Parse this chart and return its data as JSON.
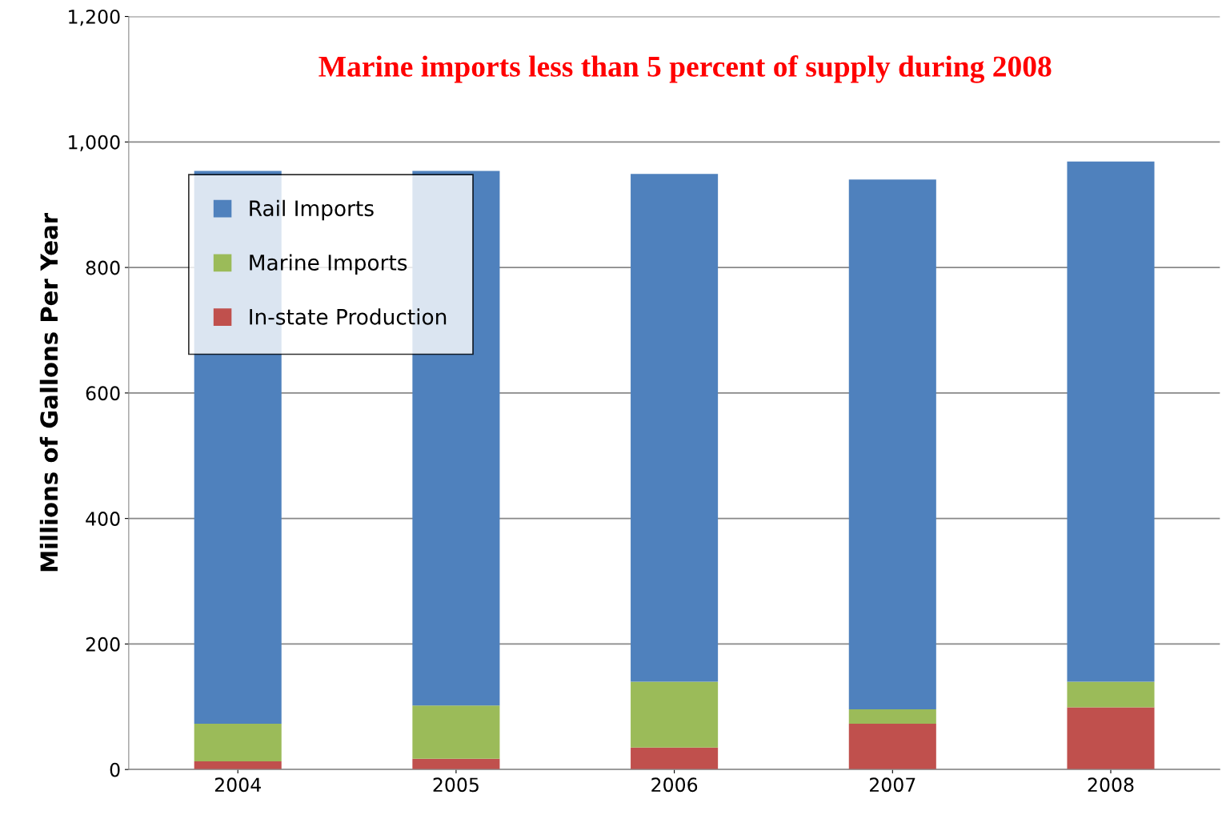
{
  "chart_data": {
    "type": "bar",
    "title": "Marine imports less than 5 percent of supply during 2008",
    "ylabel": "Millions of Gallons Per Year",
    "categories": [
      "2004",
      "2005",
      "2006",
      "2007",
      "2008"
    ],
    "stacked": true,
    "series": [
      {
        "name": "In-state Production",
        "color": "#c0504d",
        "values": [
          13,
          17,
          35,
          73,
          99
        ]
      },
      {
        "name": "Marine Imports",
        "color": "#9bbb59",
        "values": [
          60,
          85,
          105,
          23,
          41
        ]
      },
      {
        "name": "Rail Imports",
        "color": "#4f81bd",
        "values": [
          881,
          852,
          809,
          844,
          829
        ]
      }
    ],
    "ylim": [
      0,
      1200
    ],
    "yticks": [
      0,
      {
        "value": 200,
        "label": "200"
      },
      {
        "value": 400,
        "label": "400"
      },
      {
        "value": 600,
        "label": "600"
      },
      {
        "value": 800,
        "label": "800"
      },
      {
        "value": 1000,
        "label": "1,000"
      },
      {
        "value": 1200,
        "label": "1,200"
      }
    ],
    "grid": "y",
    "legend": "top left"
  }
}
